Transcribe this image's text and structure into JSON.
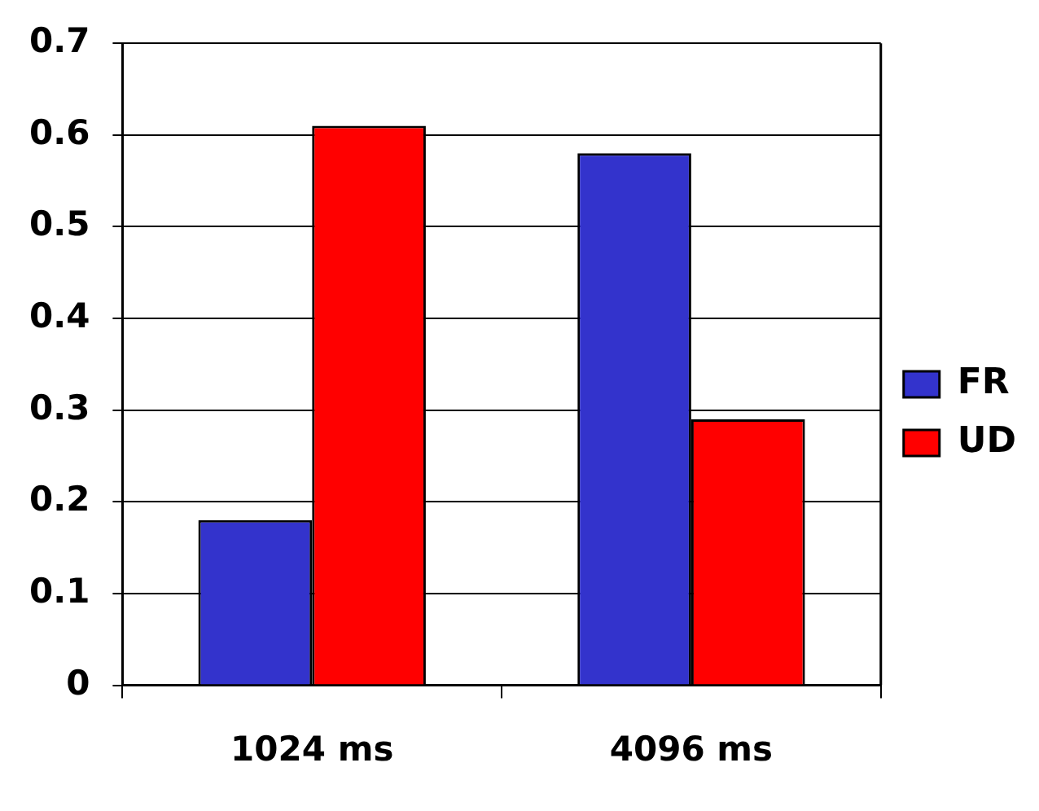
{
  "chart_data": {
    "type": "bar",
    "categories": [
      "1024 ms",
      "4096 ms"
    ],
    "series": [
      {
        "name": "FR",
        "color": "#3333cc",
        "values": [
          0.18,
          0.58
        ]
      },
      {
        "name": "UD",
        "color": "#ff0000",
        "values": [
          0.61,
          0.29
        ]
      }
    ],
    "ylim": [
      0,
      0.7
    ],
    "yticks": [
      0,
      0.1,
      0.2,
      0.3,
      0.4,
      0.5,
      0.6,
      0.7
    ],
    "grid": "y",
    "legend": "right"
  }
}
